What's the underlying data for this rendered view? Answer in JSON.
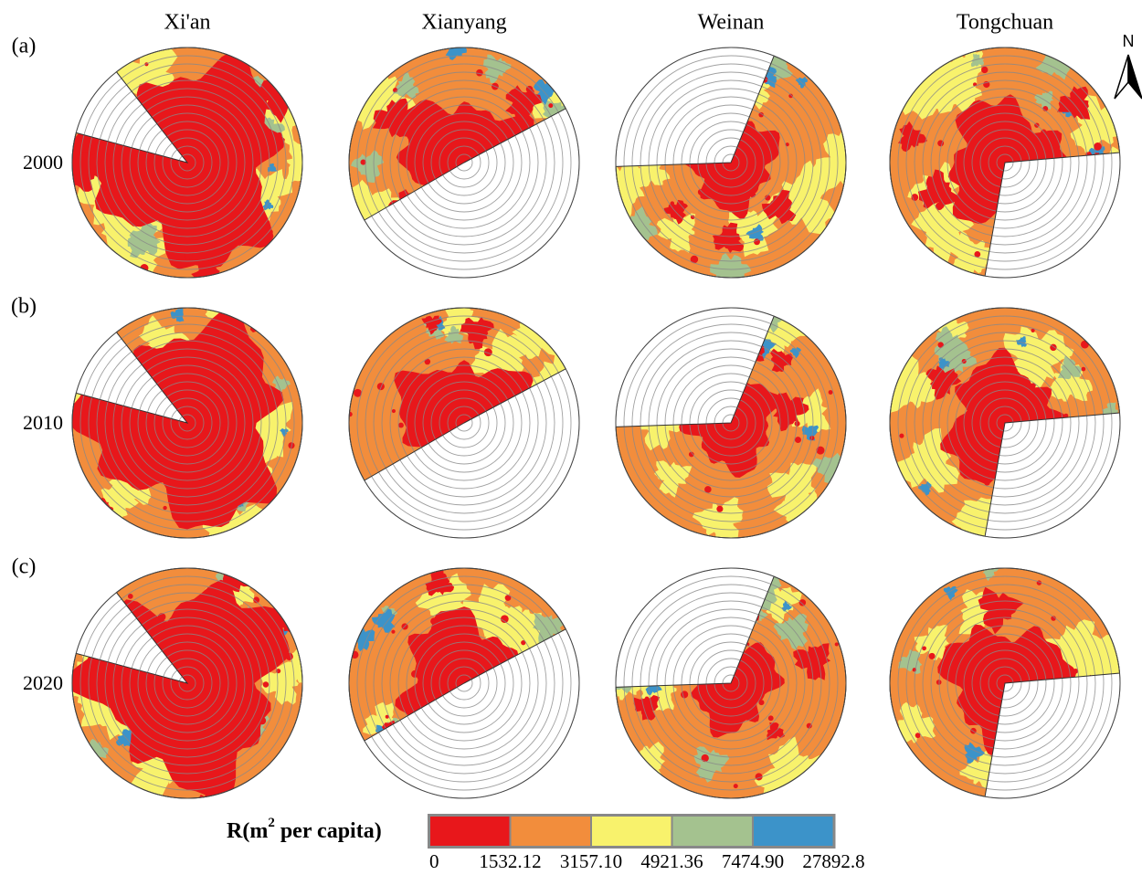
{
  "columns": [
    "Xi'an",
    "Xianyang",
    "Weinan",
    "Tongchuan"
  ],
  "rows": [
    {
      "label": "(a)",
      "year": "2000"
    },
    {
      "label": "(b)",
      "year": "2010"
    },
    {
      "label": "(c)",
      "year": "2020"
    }
  ],
  "north": "N",
  "legend": {
    "title": "R(m",
    "title_sup": "2",
    "title_rest": " per capita)",
    "colors": [
      "#e8171b",
      "#f28d3c",
      "#f8f26c",
      "#a4c28f",
      "#3c93c9"
    ],
    "breaks": [
      "0",
      "1532.12",
      "3157.10",
      "4921.36",
      "7474.90",
      "27892.8"
    ]
  }
}
